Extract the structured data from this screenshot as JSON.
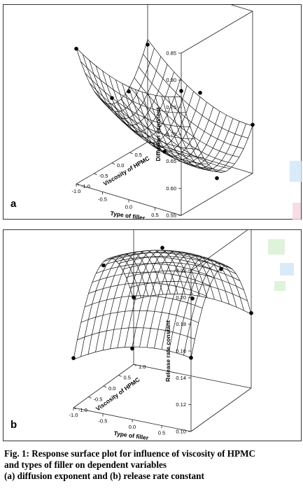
{
  "chart_data": [
    {
      "type": "surface3d",
      "panel_label": "a",
      "zlabel": "Diffusion exponent",
      "xlabel": "Type of filler",
      "ylabel": "Viscosity of HPMC",
      "z_ticks": [
        "0.55",
        "0.60",
        "0.65",
        "0.70",
        "0.75",
        "0.80",
        "0.85"
      ],
      "x_ticks": [
        "0.5",
        "0.0",
        "-0.5",
        "-1.0"
      ],
      "y_ticks": [
        "-1.0",
        "-0.5",
        "0.0",
        "0.5",
        "1.0"
      ],
      "zlim": [
        0.55,
        0.85
      ],
      "surface_shape": "concave-up bowl",
      "points": [
        {
          "x": 1.0,
          "y": -1.0,
          "z": 0.78
        },
        {
          "x": 0.0,
          "y": -1.0,
          "z": 0.75
        },
        {
          "x": -1.0,
          "y": -1.0,
          "z": 0.8
        },
        {
          "x": 1.0,
          "y": 0.0,
          "z": 0.58
        },
        {
          "x": 0.0,
          "y": 0.0,
          "z": 0.6
        },
        {
          "x": -1.0,
          "y": 0.0,
          "z": 0.67
        },
        {
          "x": 1.0,
          "y": 1.0,
          "z": 0.64
        },
        {
          "x": 0.0,
          "y": 1.0,
          "z": 0.67
        },
        {
          "x": -1.0,
          "y": 1.0,
          "z": 0.73
        }
      ]
    },
    {
      "type": "surface3d",
      "panel_label": "b",
      "zlabel": "Release rate constant",
      "xlabel": "Type of filler",
      "ylabel": "Viscosity of HPMC",
      "z_ticks": [
        "0.10",
        "0.12",
        "0.14",
        "0.16",
        "0.18",
        "0.20",
        "0.22"
      ],
      "x_ticks": [
        "0.5",
        "0.0",
        "-0.5",
        "-1.0"
      ],
      "y_ticks": [
        "-1.0",
        "-0.5",
        "0.0",
        "0.5",
        "1.0"
      ],
      "zlim": [
        0.1,
        0.22
      ],
      "surface_shape": "concave-down dome",
      "points": [
        {
          "x": 1.0,
          "y": -1.0,
          "z": 0.155
        },
        {
          "x": 0.0,
          "y": -1.0,
          "z": 0.153
        },
        {
          "x": -1.0,
          "y": -1.0,
          "z": 0.137
        },
        {
          "x": 1.0,
          "y": 0.0,
          "z": 0.205
        },
        {
          "x": 0.0,
          "y": 0.0,
          "z": 0.212
        },
        {
          "x": -1.0,
          "y": 0.0,
          "z": 0.19
        },
        {
          "x": 1.0,
          "y": 1.0,
          "z": 0.156
        },
        {
          "x": 0.0,
          "y": 1.0,
          "z": 0.158
        },
        {
          "x": -1.0,
          "y": 1.0,
          "z": 0.15
        }
      ]
    }
  ],
  "caption": {
    "line1": "Fig. 1: Response surface plot for influence of viscosity of HPMC",
    "line2": "and types of filler on dependent variables",
    "line3": "(a) diffusion exponent and (b) release rate constant"
  },
  "watermark_colors": {
    "blue": "#cfe6f7",
    "pink": "#f6d5df",
    "green": "#d7f0d2"
  }
}
